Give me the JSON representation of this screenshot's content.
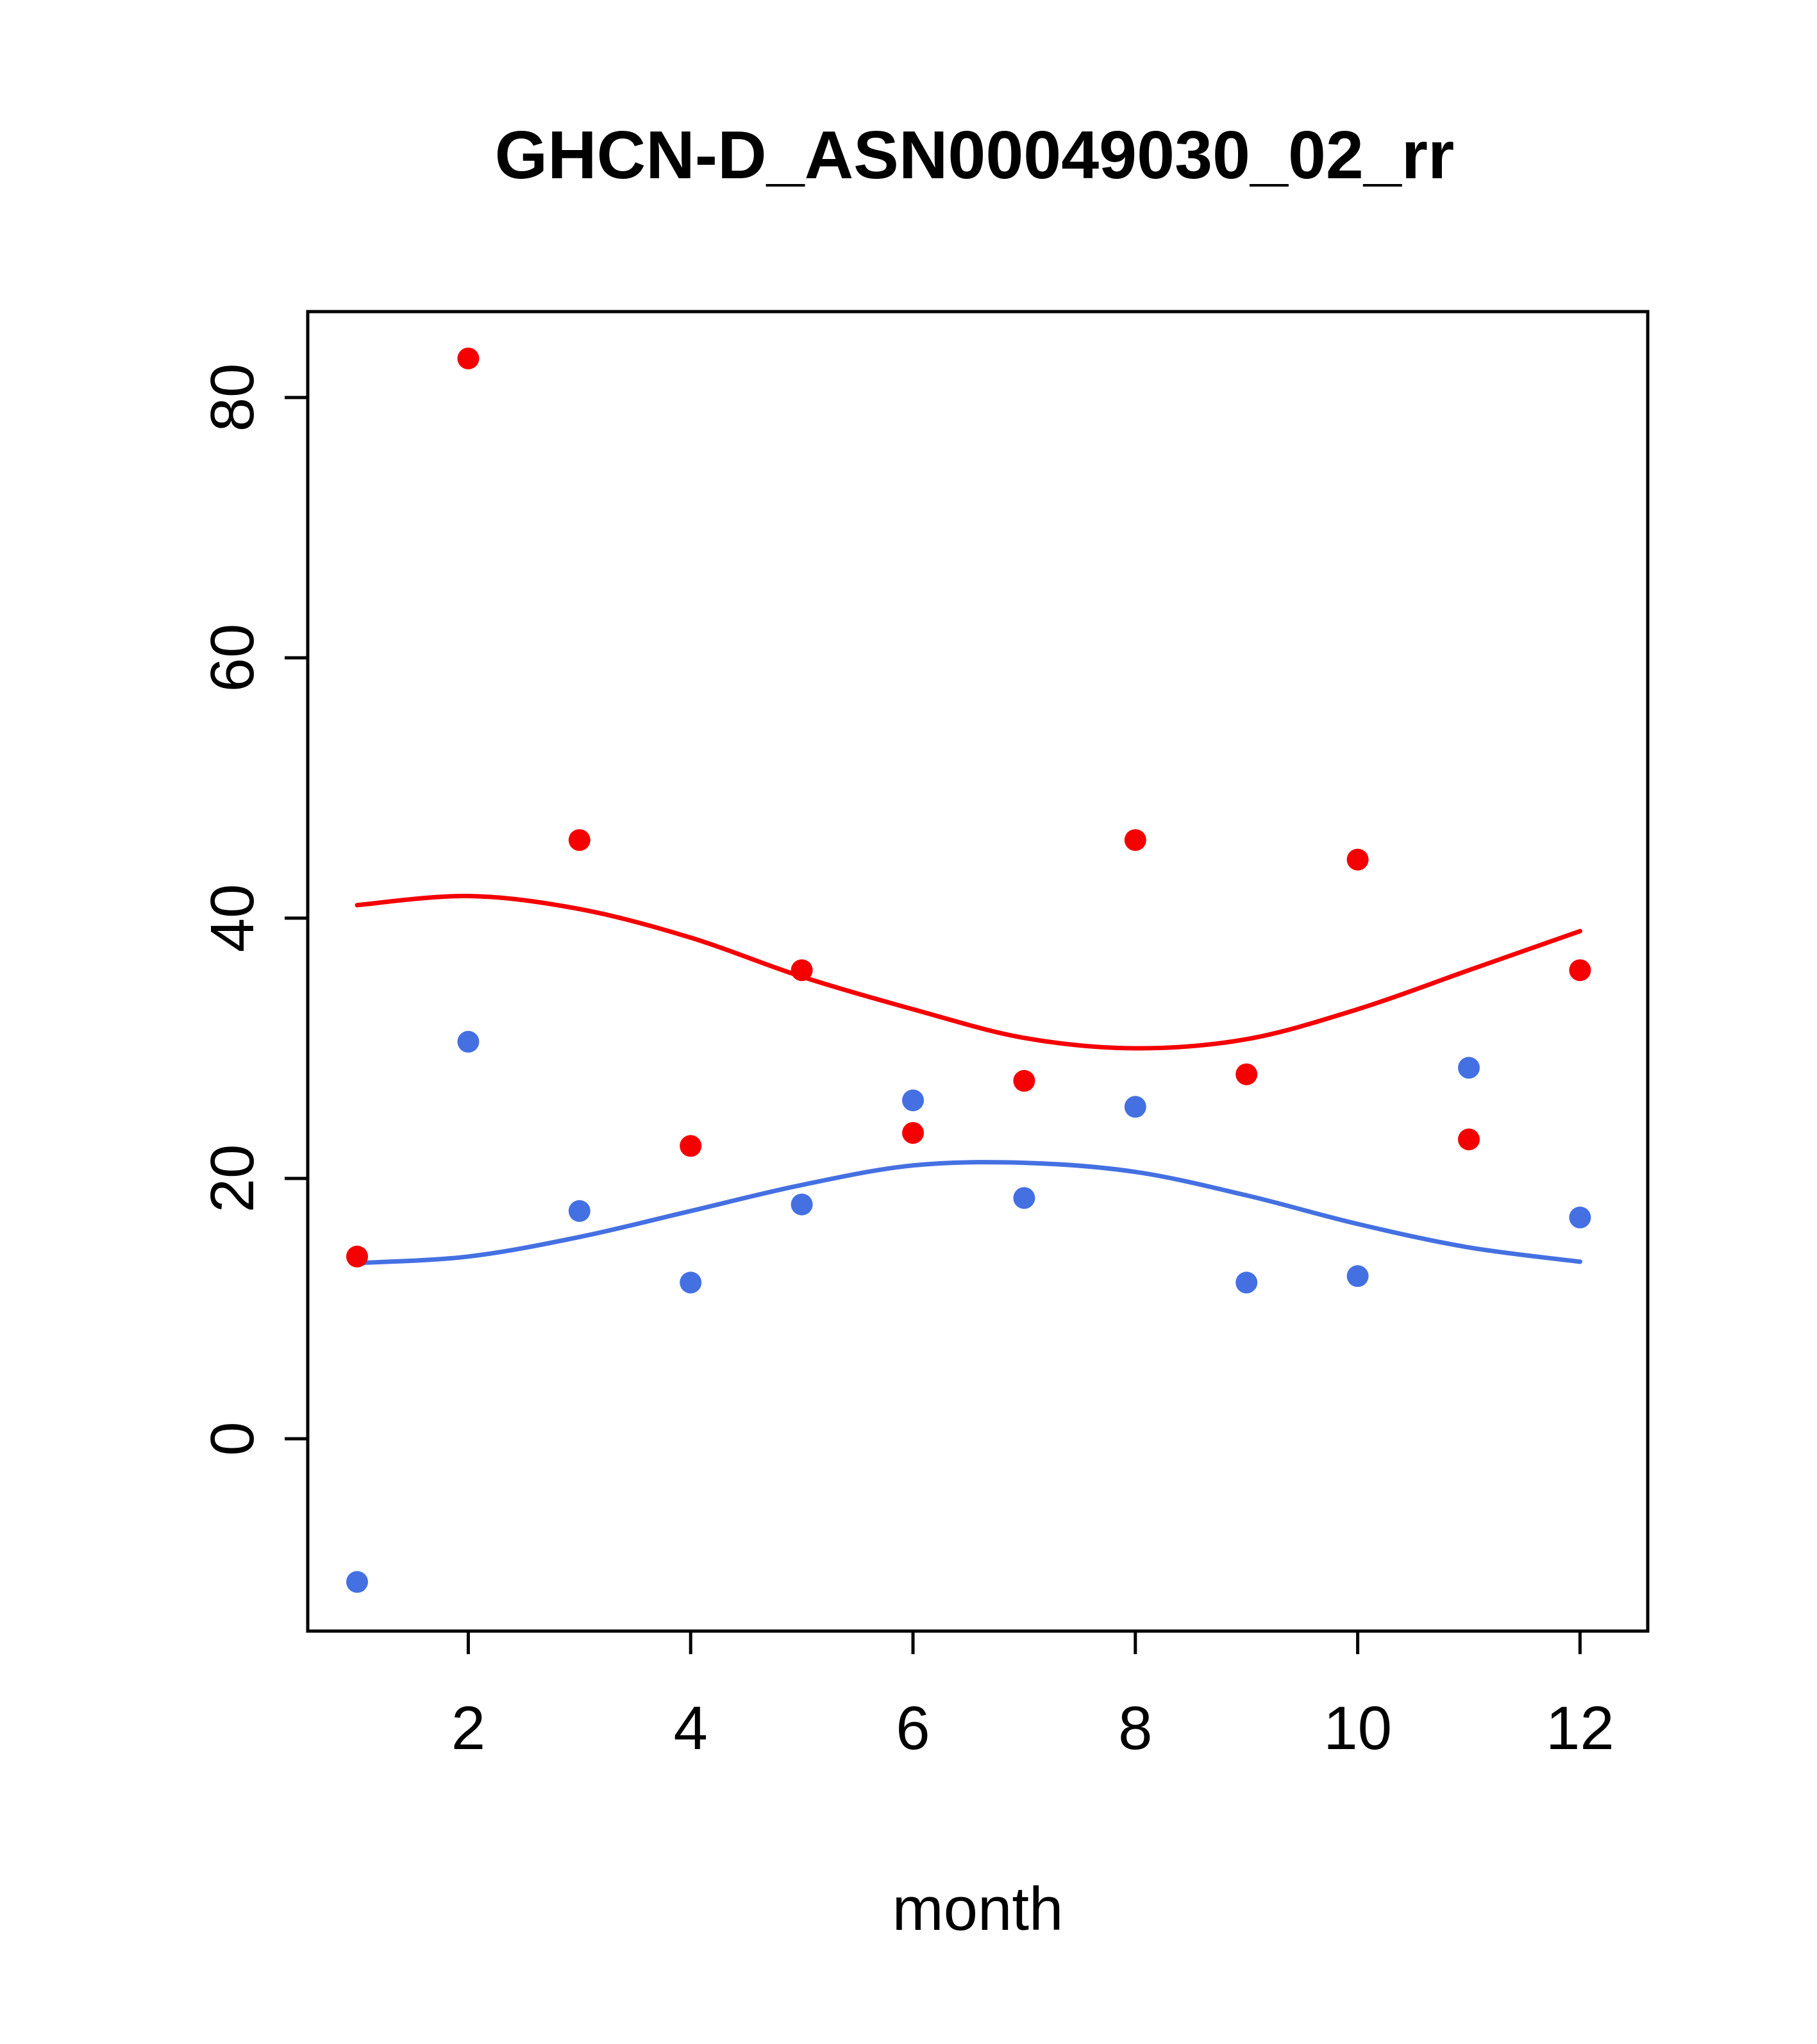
{
  "chart_data": {
    "type": "scatter",
    "title": "GHCN-D_ASN00049030_02_rr",
    "xlabel": "month",
    "ylabel": "",
    "x_ticks": [
      2,
      4,
      6,
      8,
      10,
      12
    ],
    "y_ticks": [
      0,
      20,
      40,
      60,
      80
    ],
    "xlim": [
      0.55,
      12.6
    ],
    "ylim": [
      -15,
      87
    ],
    "grid": false,
    "legend": "none",
    "x": [
      1,
      2,
      3,
      4,
      5,
      6,
      7,
      8,
      9,
      10,
      11,
      12
    ],
    "series": [
      {
        "name": "red-series",
        "color": "#f50000",
        "values": [
          14,
          83,
          46,
          22.5,
          36,
          23.5,
          27.5,
          46,
          28,
          44.5,
          23,
          36
        ],
        "trend": [
          41,
          41.7,
          40.7,
          38.5,
          35.5,
          33,
          30.8,
          30,
          30.7,
          33,
          36,
          39
        ]
      },
      {
        "name": "blue-series",
        "color": "#4470e2",
        "values": [
          -11,
          30.5,
          17.5,
          12,
          18,
          26,
          18.5,
          25.5,
          12,
          12.5,
          28.5,
          17
        ],
        "trend": [
          13.5,
          14,
          15.5,
          17.5,
          19.5,
          21,
          21.2,
          20.5,
          18.7,
          16.5,
          14.7,
          13.6
        ]
      }
    ],
    "frame_color": "#000000"
  }
}
